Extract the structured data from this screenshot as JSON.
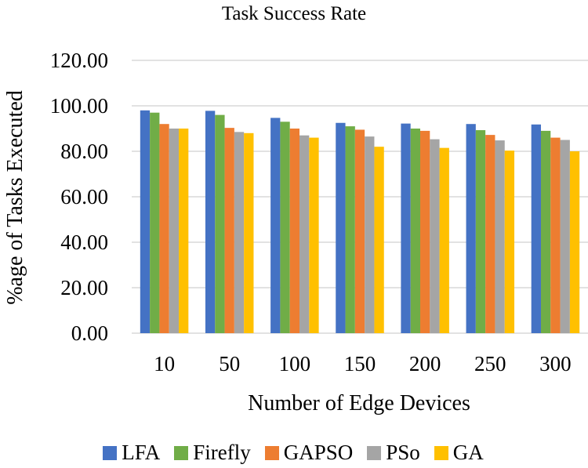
{
  "chart_data": {
    "type": "bar",
    "title": "Task Success Rate",
    "xlabel": "Number of Edge Devices",
    "ylabel": "%age of Tasks Executed",
    "categories": [
      "10",
      "50",
      "100",
      "150",
      "200",
      "250",
      "300"
    ],
    "ylim": [
      0,
      120
    ],
    "yticks": [
      "0.00",
      "20.00",
      "40.00",
      "60.00",
      "80.00",
      "100.00",
      "120.00"
    ],
    "grid": true,
    "legend_position": "bottom",
    "series": [
      {
        "name": "LFA",
        "color": "#4472C4",
        "values": [
          98.0,
          97.8,
          94.7,
          92.5,
          92.2,
          92.0,
          91.8
        ]
      },
      {
        "name": "Firefly",
        "color": "#70AD47",
        "values": [
          97.0,
          96.0,
          93.0,
          91.0,
          90.0,
          89.3,
          89.0
        ]
      },
      {
        "name": "GAPSO",
        "color": "#ED7D31",
        "values": [
          92.0,
          90.3,
          90.0,
          89.5,
          89.0,
          87.2,
          86.0
        ]
      },
      {
        "name": "PSo",
        "color": "#A5A5A5",
        "values": [
          90.0,
          88.5,
          87.0,
          86.5,
          85.3,
          84.8,
          85.0
        ]
      },
      {
        "name": "GA",
        "color": "#FFC000",
        "values": [
          90.0,
          88.0,
          86.0,
          82.0,
          81.5,
          80.3,
          80.0
        ]
      }
    ]
  }
}
